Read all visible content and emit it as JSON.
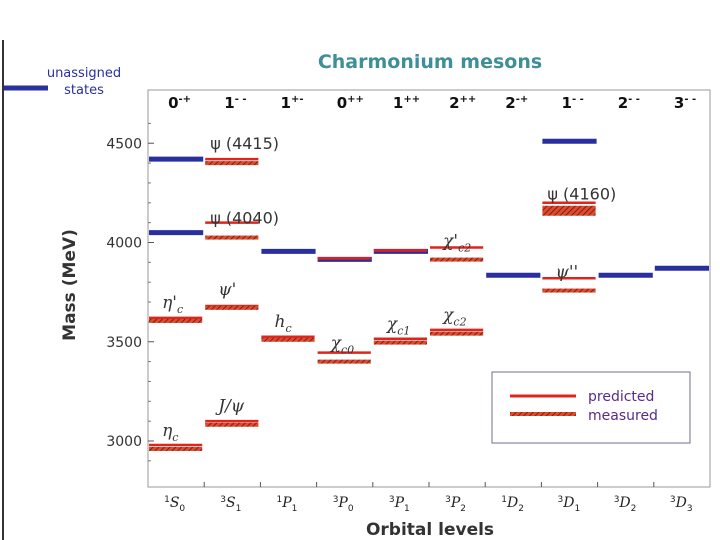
{
  "chart_data": {
    "type": "scatter",
    "title": "Charmonium mesons",
    "xlabel": "Orbital levels",
    "ylabel": "Mass (MeV)",
    "ylim": [
      2850,
      4700
    ],
    "yticks": [
      3000,
      3500,
      4000,
      4500
    ],
    "grid": false,
    "columns": [
      {
        "jpc": "0-+",
        "level": "1S0",
        "sup": "1",
        "L": "S",
        "sub": "0"
      },
      {
        "jpc": "1- -",
        "level": "3S1",
        "sup": "3",
        "L": "S",
        "sub": "1"
      },
      {
        "jpc": "1+-",
        "level": "1P1",
        "sup": "1",
        "L": "P",
        "sub": "1"
      },
      {
        "jpc": "0++",
        "level": "3P0",
        "sup": "3",
        "L": "P",
        "sub": "0"
      },
      {
        "jpc": "1++",
        "level": "3P1",
        "sup": "3",
        "L": "P",
        "sub": "1"
      },
      {
        "jpc": "2++",
        "level": "3P2",
        "sup": "3",
        "L": "P",
        "sub": "2"
      },
      {
        "jpc": "2-+",
        "level": "1D2",
        "sup": "1",
        "L": "D",
        "sub": "2"
      },
      {
        "jpc": "1- -",
        "level": "3D1",
        "sup": "3",
        "L": "D",
        "sub": "1"
      },
      {
        "jpc": "2- -",
        "level": "3D2",
        "sup": "3",
        "L": "D",
        "sub": "2"
      },
      {
        "jpc": "3- -",
        "level": "3D3",
        "sup": "3",
        "L": "D",
        "sub": "3"
      }
    ],
    "series": [
      {
        "name": "predicted",
        "color": "#e0241b",
        "points": [
          {
            "col": 0,
            "mass": 2980
          },
          {
            "col": 0,
            "mass": 3620
          },
          {
            "col": 1,
            "mass": 3100
          },
          {
            "col": 1,
            "mass": 3680
          },
          {
            "col": 1,
            "mass": 4100
          },
          {
            "col": 1,
            "mass": 4420
          },
          {
            "col": 2,
            "mass": 3525
          },
          {
            "col": 3,
            "mass": 3445
          },
          {
            "col": 3,
            "mass": 3920
          },
          {
            "col": 4,
            "mass": 3515
          },
          {
            "col": 4,
            "mass": 3960
          },
          {
            "col": 5,
            "mass": 3560
          },
          {
            "col": 5,
            "mass": 3975
          },
          {
            "col": 7,
            "mass": 3820
          },
          {
            "col": 7,
            "mass": 4200
          }
        ]
      },
      {
        "name": "measured",
        "color": "#c8602a",
        "points": [
          {
            "col": 0,
            "mass": 2975,
            "label": "ηc",
            "base": "η",
            "lsub": "c"
          },
          {
            "col": 0,
            "mass": 3620,
            "label": "η'c",
            "base": "η'",
            "lsub": "c"
          },
          {
            "col": 1,
            "mass": 3097,
            "label": "J/ψ",
            "base": "J/ψ",
            "lsub": ""
          },
          {
            "col": 1,
            "mass": 3686,
            "label": "ψ'",
            "base": "ψ'",
            "lsub": ""
          },
          {
            "col": 1,
            "mass": 4040,
            "label": "ψ (4040)",
            "base": "ψ (4040)",
            "lsub": ""
          },
          {
            "col": 1,
            "mass": 4415,
            "label": "ψ (4415)",
            "base": "ψ (4415)",
            "lsub": ""
          },
          {
            "col": 2,
            "mass": 3525,
            "label": "hc",
            "base": "h",
            "lsub": "c"
          },
          {
            "col": 3,
            "mass": 3415,
            "label": "χc0",
            "base": "χ",
            "lsub": "c0"
          },
          {
            "col": 4,
            "mass": 3511,
            "label": "χc1",
            "base": "χ",
            "lsub": "c1"
          },
          {
            "col": 5,
            "mass": 3556,
            "label": "χc2",
            "base": "χ",
            "lsub": "c2"
          },
          {
            "col": 5,
            "mass": 3929,
            "label": "χ'c2",
            "base": "χ'",
            "lsub": "c2"
          },
          {
            "col": 7,
            "mass": 3773,
            "label": "ψ''",
            "base": "ψ''",
            "lsub": ""
          },
          {
            "col": 7,
            "mass": 4160,
            "label": "ψ (4160)",
            "base": "ψ (4160)",
            "lsub": ""
          }
        ]
      },
      {
        "name": "unassigned states",
        "color": "#2a2fa0",
        "bars": [
          {
            "from": 0,
            "to": 1,
            "mass": 4420
          },
          {
            "from": 0,
            "to": 1,
            "mass": 4050
          },
          {
            "from": 2,
            "to": 3,
            "mass": 3955
          },
          {
            "from": 3,
            "to": 4,
            "mass": 3915
          },
          {
            "from": 4,
            "to": 5,
            "mass": 3955
          },
          {
            "from": 6,
            "to": 7,
            "mass": 3835
          },
          {
            "from": 7,
            "to": 8,
            "mass": 4510
          },
          {
            "from": 8,
            "to": 9,
            "mass": 3835
          },
          {
            "from": 9,
            "to": 10,
            "mass": 3870
          }
        ]
      }
    ],
    "legend": {
      "predicted": "predicted",
      "measured": "measured",
      "unassigned_line1": "unassigned",
      "unassigned_line2": "states",
      "placement": "bottom-right"
    }
  }
}
